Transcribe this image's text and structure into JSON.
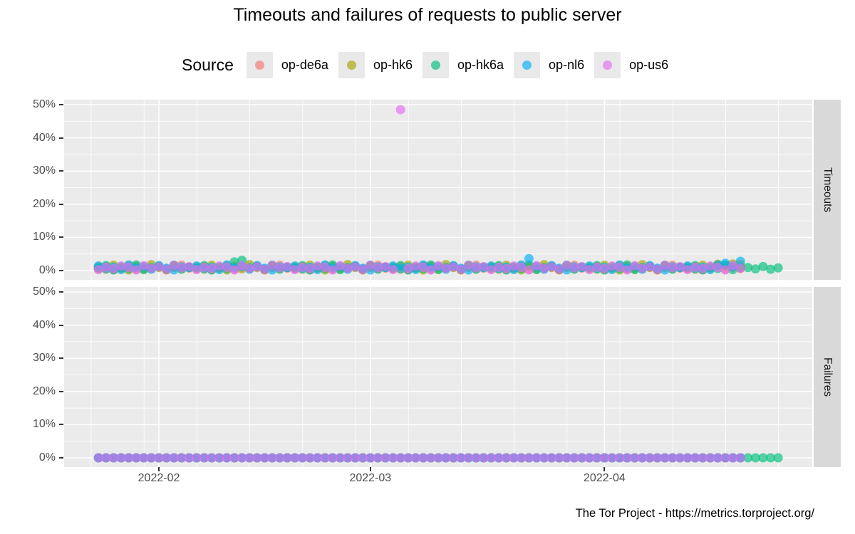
{
  "title": "Timeouts and failures of requests to public server",
  "footer": "The Tor Project - https://metrics.torproject.org/",
  "legend": {
    "title": "Source",
    "items": [
      {
        "label": "op-de6a",
        "color": "#F8766D"
      },
      {
        "label": "op-hk6",
        "color": "#A3A500"
      },
      {
        "label": "op-hk6a",
        "color": "#00BF7D"
      },
      {
        "label": "op-nl6",
        "color": "#00B0F6"
      },
      {
        "label": "op-us6",
        "color": "#E76BF3"
      }
    ]
  },
  "chart_data": {
    "type": "scatter",
    "facets": [
      {
        "key": "timeouts",
        "label": "Timeouts"
      },
      {
        "key": "failures",
        "label": "Failures"
      }
    ],
    "ylabel": "",
    "ylim": [
      0,
      50
    ],
    "y_ticks": [
      {
        "value": 0,
        "label": "0%"
      },
      {
        "value": 10,
        "label": "10%"
      },
      {
        "value": 20,
        "label": "20%"
      },
      {
        "value": 30,
        "label": "30%"
      },
      {
        "value": 40,
        "label": "40%"
      },
      {
        "value": 50,
        "label": "50%"
      }
    ],
    "x_start_date": "2022-01-24",
    "x_end_date": "2022-04-24",
    "x_ticks": [
      {
        "label": "2022-02",
        "day_index": 8
      },
      {
        "label": "2022-03",
        "day_index": 36
      },
      {
        "label": "2022-04",
        "day_index": 67
      }
    ],
    "grid": {
      "major_y_step_pct": 10,
      "minor_y_step_pct": 5,
      "minor_x_step_days": 7
    },
    "legend_position": "top",
    "point_opacity": 0.65,
    "series": [
      {
        "name": "op-de6a",
        "color": "#F8766D",
        "end_index": 85,
        "timeouts_pct": [
          0.5,
          1.2,
          0.3,
          0.8,
          1.5,
          0.4,
          1.0,
          0.6,
          1.3,
          0.2,
          0.9,
          1.6,
          0.7,
          0.5,
          1.2,
          0.3,
          0.8,
          1.5,
          0.4,
          1.0,
          0.6,
          1.3,
          0.2,
          0.9,
          1.6,
          0.7,
          0.5,
          1.2,
          0.3,
          0.8,
          1.5,
          0.4,
          1.0,
          0.6,
          1.3,
          0.2,
          0.9,
          1.6,
          0.7,
          0.5,
          1.2,
          0.3,
          0.8,
          1.5,
          0.4,
          1.0,
          0.6,
          1.3,
          0.2,
          0.9,
          1.6,
          0.7,
          0.5,
          1.2,
          0.3,
          0.8,
          1.5,
          0.4,
          1.0,
          0.6,
          1.3,
          0.2,
          0.9,
          1.6,
          0.7,
          0.5,
          1.2,
          0.3,
          0.8,
          1.5,
          0.4,
          1.0,
          0.6,
          1.3,
          0.2,
          0.9,
          1.6,
          0.7,
          0.5,
          1.2,
          0.3,
          0.8,
          1.5,
          0.4,
          1.0,
          0.6,
          1.3,
          0.2,
          0.9,
          1.6,
          0.7
        ],
        "failures_pct_constant": 0
      },
      {
        "name": "op-hk6",
        "color": "#A3A500",
        "end_index": 85,
        "timeouts_pct": [
          1.1,
          0.4,
          1.6,
          0.7,
          0.2,
          1.3,
          0.5,
          1.8,
          0.9,
          0.3,
          1.4,
          0.6,
          1.0,
          1.1,
          0.4,
          1.6,
          0.7,
          0.2,
          1.3,
          0.5,
          1.8,
          0.9,
          0.3,
          1.4,
          0.6,
          1.0,
          1.1,
          0.4,
          1.6,
          0.7,
          0.2,
          1.3,
          0.5,
          1.8,
          0.9,
          0.3,
          1.4,
          0.6,
          1.0,
          1.1,
          0.4,
          1.6,
          0.7,
          0.2,
          1.3,
          0.5,
          1.8,
          0.9,
          0.3,
          1.4,
          0.6,
          1.0,
          1.1,
          0.4,
          1.6,
          0.7,
          0.2,
          1.3,
          0.5,
          1.8,
          0.9,
          0.3,
          1.4,
          0.6,
          1.0,
          1.1,
          0.4,
          1.6,
          0.7,
          0.2,
          1.3,
          0.5,
          1.8,
          0.9,
          0.3,
          1.4,
          0.6,
          1.0,
          1.1,
          0.4,
          1.6,
          0.7,
          1.9,
          1.3,
          2.0,
          1.8,
          0.9,
          0.3,
          1.4,
          0.6,
          1.0
        ],
        "failures_pct_constant": 0
      },
      {
        "name": "op-hk6a",
        "color": "#00BF7D",
        "end_index": 90,
        "timeouts_pct": [
          0.8,
          1.5,
          0.2,
          1.1,
          0.6,
          1.7,
          0.3,
          0.9,
          1.2,
          0.5,
          1.6,
          0.4,
          1.0,
          0.8,
          1.5,
          0.2,
          1.1,
          0.6,
          2.6,
          3.1,
          0.9,
          1.2,
          0.5,
          1.6,
          0.4,
          1.0,
          0.8,
          1.5,
          0.2,
          1.1,
          0.6,
          1.7,
          0.3,
          0.9,
          1.2,
          0.5,
          1.6,
          0.4,
          1.0,
          0.8,
          1.5,
          0.2,
          1.1,
          0.6,
          1.7,
          0.3,
          0.9,
          1.2,
          0.5,
          1.6,
          0.4,
          1.0,
          0.8,
          1.5,
          0.2,
          1.1,
          0.6,
          1.7,
          0.3,
          0.9,
          1.2,
          0.5,
          1.6,
          0.4,
          1.0,
          0.8,
          1.5,
          0.2,
          1.1,
          0.6,
          1.7,
          0.3,
          0.9,
          1.2,
          0.5,
          1.6,
          0.4,
          1.0,
          0.8,
          1.5,
          0.2,
          1.1,
          0.6,
          1.7,
          0.3,
          0.9,
          0.9,
          0.5,
          1.2,
          0.4,
          0.8
        ],
        "failures_pct_constant": 0
      },
      {
        "name": "op-nl6",
        "color": "#00B0F6",
        "end_index": 85,
        "timeouts_pct": [
          1.4,
          0.6,
          1.0,
          0.3,
          1.7,
          0.8,
          1.2,
          0.4,
          1.5,
          0.7,
          0.2,
          1.1,
          0.9,
          1.4,
          0.6,
          1.0,
          0.3,
          1.7,
          0.8,
          1.2,
          0.4,
          1.5,
          0.7,
          0.2,
          1.1,
          0.9,
          1.4,
          0.6,
          1.0,
          0.3,
          1.7,
          0.8,
          1.2,
          0.4,
          1.5,
          0.7,
          0.2,
          1.1,
          0.9,
          1.4,
          0.6,
          1.0,
          0.3,
          1.7,
          0.8,
          1.2,
          0.4,
          1.5,
          0.7,
          0.2,
          1.1,
          0.9,
          1.4,
          0.6,
          1.0,
          0.3,
          1.7,
          3.6,
          1.2,
          0.4,
          1.5,
          0.7,
          0.2,
          1.1,
          0.9,
          1.4,
          0.6,
          1.0,
          0.3,
          1.7,
          0.8,
          1.2,
          0.4,
          1.5,
          0.7,
          0.2,
          1.1,
          0.9,
          1.4,
          0.6,
          1.0,
          0.3,
          1.7,
          2.2,
          1.2,
          2.8,
          1.5,
          0.7,
          0.2,
          1.1,
          0.9
        ],
        "failures_pct_constant": 0
      },
      {
        "name": "op-us6",
        "color": "#E76BF3",
        "end_index": 85,
        "timeouts_pct": [
          0.3,
          1.0,
          0.6,
          1.4,
          0.9,
          0.2,
          1.5,
          0.7,
          1.1,
          0.4,
          1.6,
          0.8,
          1.2,
          0.3,
          1.0,
          0.6,
          1.4,
          0.9,
          0.2,
          1.5,
          0.7,
          1.1,
          0.4,
          1.6,
          0.8,
          1.2,
          0.3,
          1.0,
          0.6,
          1.4,
          0.9,
          0.2,
          1.5,
          0.7,
          1.1,
          0.4,
          1.6,
          0.8,
          1.2,
          0.3,
          48.5,
          0.6,
          1.4,
          0.9,
          0.2,
          1.5,
          0.7,
          1.1,
          0.4,
          1.6,
          0.8,
          1.2,
          0.3,
          1.0,
          0.6,
          1.4,
          0.9,
          0.2,
          1.5,
          0.7,
          1.1,
          0.4,
          1.6,
          0.8,
          1.2,
          0.3,
          1.0,
          0.6,
          1.4,
          0.9,
          0.2,
          1.5,
          0.7,
          1.1,
          0.4,
          1.6,
          0.8,
          1.2,
          0.3,
          1.0,
          0.6,
          1.4,
          0.9,
          0.2,
          1.5,
          0.7,
          1.1,
          0.4,
          1.6,
          0.8,
          1.2
        ],
        "failures_pct_constant": 0
      }
    ]
  }
}
